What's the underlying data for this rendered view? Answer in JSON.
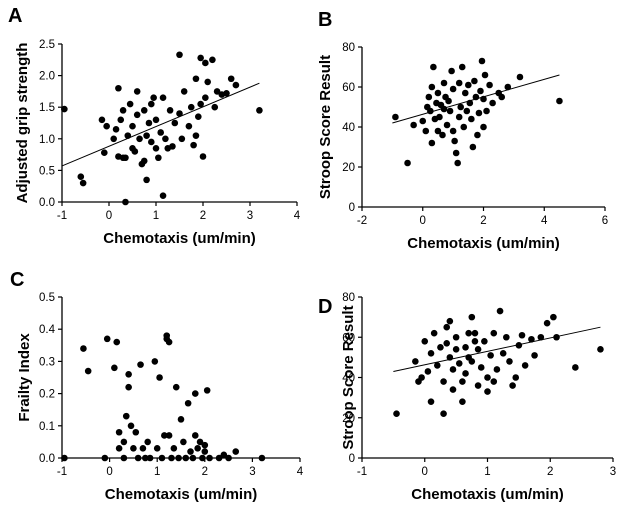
{
  "chart_data": [
    {
      "panel_label": "A",
      "type": "scatter",
      "xlabel": "Chemotaxis (um/min)",
      "ylabel": "Adjusted grip strength",
      "xlim": [
        -1,
        4
      ],
      "ylim": [
        0,
        2.5
      ],
      "xticks": [
        "-1",
        "0",
        "1",
        "2",
        "3",
        "4"
      ],
      "yticks": [
        "0.0",
        "0.5",
        "1.0",
        "1.5",
        "2.0",
        "2.5"
      ],
      "fit_line": [
        [
          -1,
          0.57
        ],
        [
          3.2,
          1.88
        ]
      ],
      "points": [
        [
          -0.95,
          1.47
        ],
        [
          -0.6,
          0.4
        ],
        [
          -0.55,
          0.3
        ],
        [
          -0.15,
          1.3
        ],
        [
          -0.1,
          0.78
        ],
        [
          -0.05,
          1.2
        ],
        [
          0.1,
          1.0
        ],
        [
          0.15,
          1.15
        ],
        [
          0.2,
          0.72
        ],
        [
          0.2,
          1.8
        ],
        [
          0.25,
          1.3
        ],
        [
          0.3,
          1.45
        ],
        [
          0.3,
          0.7
        ],
        [
          0.35,
          0.0
        ],
        [
          0.35,
          0.7
        ],
        [
          0.4,
          1.05
        ],
        [
          0.45,
          1.55
        ],
        [
          0.5,
          1.2
        ],
        [
          0.5,
          0.85
        ],
        [
          0.55,
          0.8
        ],
        [
          0.6,
          1.38
        ],
        [
          0.6,
          1.75
        ],
        [
          0.65,
          1.0
        ],
        [
          0.7,
          0.6
        ],
        [
          0.75,
          0.65
        ],
        [
          0.75,
          1.45
        ],
        [
          0.8,
          1.05
        ],
        [
          0.8,
          0.35
        ],
        [
          0.85,
          1.25
        ],
        [
          0.9,
          1.55
        ],
        [
          0.9,
          0.95
        ],
        [
          0.95,
          1.65
        ],
        [
          1.0,
          0.85
        ],
        [
          1.0,
          1.3
        ],
        [
          1.05,
          0.7
        ],
        [
          1.1,
          1.1
        ],
        [
          1.15,
          1.65
        ],
        [
          1.15,
          0.1
        ],
        [
          1.2,
          1.0
        ],
        [
          1.25,
          0.85
        ],
        [
          1.3,
          1.45
        ],
        [
          1.35,
          0.88
        ],
        [
          1.4,
          1.25
        ],
        [
          1.5,
          2.33
        ],
        [
          1.5,
          1.4
        ],
        [
          1.55,
          1.0
        ],
        [
          1.6,
          1.75
        ],
        [
          1.7,
          1.2
        ],
        [
          1.75,
          1.5
        ],
        [
          1.8,
          0.9
        ],
        [
          1.85,
          1.05
        ],
        [
          1.85,
          1.95
        ],
        [
          1.9,
          1.35
        ],
        [
          1.95,
          2.28
        ],
        [
          1.95,
          1.55
        ],
        [
          2.0,
          0.72
        ],
        [
          2.05,
          1.65
        ],
        [
          2.05,
          2.2
        ],
        [
          2.1,
          1.9
        ],
        [
          2.2,
          2.25
        ],
        [
          2.25,
          1.5
        ],
        [
          2.3,
          1.75
        ],
        [
          2.4,
          1.7
        ],
        [
          2.5,
          1.72
        ],
        [
          2.6,
          1.95
        ],
        [
          2.7,
          1.85
        ],
        [
          3.2,
          1.45
        ]
      ]
    },
    {
      "panel_label": "B",
      "type": "scatter",
      "xlabel": "Chemotaxis (um/min)",
      "ylabel": "Stroop Score Result",
      "xlim": [
        -2,
        6
      ],
      "ylim": [
        0,
        80
      ],
      "xticks": [
        "-2",
        "0",
        "2",
        "4",
        "6"
      ],
      "yticks": [
        "0",
        "20",
        "40",
        "60",
        "80"
      ],
      "fit_line": [
        [
          -1,
          42
        ],
        [
          4.5,
          66
        ]
      ],
      "points": [
        [
          -0.9,
          45
        ],
        [
          -0.5,
          22
        ],
        [
          -0.3,
          41
        ],
        [
          0.0,
          43
        ],
        [
          0.1,
          38
        ],
        [
          0.15,
          50
        ],
        [
          0.2,
          55
        ],
        [
          0.25,
          48
        ],
        [
          0.3,
          60
        ],
        [
          0.3,
          32
        ],
        [
          0.35,
          70
        ],
        [
          0.4,
          44
        ],
        [
          0.45,
          52
        ],
        [
          0.5,
          38
        ],
        [
          0.5,
          57
        ],
        [
          0.55,
          45
        ],
        [
          0.6,
          51
        ],
        [
          0.65,
          36
        ],
        [
          0.7,
          62
        ],
        [
          0.7,
          49
        ],
        [
          0.75,
          55
        ],
        [
          0.8,
          41
        ],
        [
          0.85,
          53
        ],
        [
          0.9,
          48
        ],
        [
          0.95,
          68
        ],
        [
          1.0,
          59
        ],
        [
          1.0,
          38
        ],
        [
          1.05,
          33
        ],
        [
          1.1,
          27
        ],
        [
          1.15,
          22
        ],
        [
          1.2,
          45
        ],
        [
          1.2,
          62
        ],
        [
          1.25,
          50
        ],
        [
          1.3,
          70
        ],
        [
          1.35,
          40
        ],
        [
          1.4,
          57
        ],
        [
          1.45,
          48
        ],
        [
          1.5,
          61
        ],
        [
          1.55,
          52
        ],
        [
          1.6,
          44
        ],
        [
          1.65,
          30
        ],
        [
          1.7,
          63
        ],
        [
          1.75,
          55
        ],
        [
          1.8,
          36
        ],
        [
          1.85,
          47
        ],
        [
          1.9,
          58
        ],
        [
          1.95,
          73
        ],
        [
          2.0,
          40
        ],
        [
          2.0,
          54
        ],
        [
          2.05,
          66
        ],
        [
          2.1,
          48
        ],
        [
          2.2,
          61
        ],
        [
          2.3,
          52
        ],
        [
          2.5,
          57
        ],
        [
          2.6,
          55
        ],
        [
          2.8,
          60
        ],
        [
          3.2,
          65
        ],
        [
          4.5,
          53
        ]
      ]
    },
    {
      "panel_label": "C",
      "type": "scatter",
      "xlabel": "Chemotaxis (um/min)",
      "ylabel": "Frailty  Index",
      "xlim": [
        -1,
        4
      ],
      "ylim": [
        0,
        0.5
      ],
      "xticks": [
        "-1",
        "0",
        "1",
        "2",
        "3",
        "4"
      ],
      "yticks": [
        "0.0",
        "0.1",
        "0.2",
        "0.3",
        "0.4",
        "0.5"
      ],
      "points": [
        [
          -0.95,
          0.0
        ],
        [
          -0.55,
          0.34
        ],
        [
          -0.45,
          0.27
        ],
        [
          -0.1,
          0.0
        ],
        [
          -0.05,
          0.37
        ],
        [
          0.1,
          0.28
        ],
        [
          0.15,
          0.36
        ],
        [
          0.2,
          0.03
        ],
        [
          0.2,
          0.08
        ],
        [
          0.3,
          0.05
        ],
        [
          0.3,
          0.0
        ],
        [
          0.35,
          0.13
        ],
        [
          0.4,
          0.26
        ],
        [
          0.4,
          0.22
        ],
        [
          0.45,
          0.1
        ],
        [
          0.5,
          0.03
        ],
        [
          0.55,
          0.08
        ],
        [
          0.6,
          0.0
        ],
        [
          0.65,
          0.29
        ],
        [
          0.7,
          0.03
        ],
        [
          0.75,
          0.0
        ],
        [
          0.8,
          0.05
        ],
        [
          0.85,
          0.0
        ],
        [
          0.95,
          0.3
        ],
        [
          1.0,
          0.03
        ],
        [
          1.05,
          0.25
        ],
        [
          1.1,
          0.0
        ],
        [
          1.15,
          0.07
        ],
        [
          1.2,
          0.38
        ],
        [
          1.2,
          0.37
        ],
        [
          1.25,
          0.36
        ],
        [
          1.25,
          0.07
        ],
        [
          1.3,
          0.0
        ],
        [
          1.35,
          0.03
        ],
        [
          1.4,
          0.22
        ],
        [
          1.45,
          0.0
        ],
        [
          1.5,
          0.12
        ],
        [
          1.55,
          0.05
        ],
        [
          1.6,
          0.0
        ],
        [
          1.65,
          0.17
        ],
        [
          1.7,
          0.02
        ],
        [
          1.75,
          0.0
        ],
        [
          1.8,
          0.07
        ],
        [
          1.8,
          0.2
        ],
        [
          1.85,
          0.03
        ],
        [
          1.9,
          0.05
        ],
        [
          1.95,
          0.0
        ],
        [
          2.0,
          0.02
        ],
        [
          2.0,
          0.04
        ],
        [
          2.05,
          0.21
        ],
        [
          2.1,
          0.0
        ],
        [
          2.3,
          0.0
        ],
        [
          2.4,
          0.01
        ],
        [
          2.5,
          0.0
        ],
        [
          2.65,
          0.02
        ],
        [
          3.2,
          0.0
        ]
      ]
    },
    {
      "panel_label": "D",
      "type": "scatter",
      "xlabel": "Chemotaxis (um/min)",
      "ylabel": "Stroop Score Result",
      "xlim": [
        -1,
        3
      ],
      "ylim": [
        0,
        80
      ],
      "xticks": [
        "-1",
        "0",
        "1",
        "2",
        "3"
      ],
      "yticks": [
        "0",
        "20",
        "40",
        "60",
        "80"
      ],
      "fit_line": [
        [
          -0.5,
          43
        ],
        [
          2.8,
          65
        ]
      ],
      "points": [
        [
          -0.45,
          22
        ],
        [
          -0.15,
          48
        ],
        [
          -0.1,
          38
        ],
        [
          -0.05,
          40
        ],
        [
          0.0,
          58
        ],
        [
          0.05,
          43
        ],
        [
          0.1,
          28
        ],
        [
          0.1,
          52
        ],
        [
          0.15,
          62
        ],
        [
          0.2,
          46
        ],
        [
          0.25,
          55
        ],
        [
          0.3,
          22
        ],
        [
          0.3,
          38
        ],
        [
          0.35,
          65
        ],
        [
          0.35,
          57
        ],
        [
          0.4,
          68
        ],
        [
          0.4,
          50
        ],
        [
          0.45,
          44
        ],
        [
          0.45,
          34
        ],
        [
          0.5,
          54
        ],
        [
          0.5,
          60
        ],
        [
          0.55,
          47
        ],
        [
          0.6,
          38
        ],
        [
          0.6,
          28
        ],
        [
          0.65,
          55
        ],
        [
          0.65,
          42
        ],
        [
          0.7,
          62
        ],
        [
          0.7,
          50
        ],
        [
          0.75,
          48
        ],
        [
          0.75,
          70
        ],
        [
          0.8,
          62
        ],
        [
          0.8,
          58
        ],
        [
          0.85,
          36
        ],
        [
          0.85,
          54
        ],
        [
          0.9,
          45
        ],
        [
          0.95,
          58
        ],
        [
          1.0,
          33
        ],
        [
          1.0,
          40
        ],
        [
          1.05,
          51
        ],
        [
          1.1,
          62
        ],
        [
          1.1,
          38
        ],
        [
          1.15,
          44
        ],
        [
          1.2,
          73
        ],
        [
          1.25,
          52
        ],
        [
          1.3,
          60
        ],
        [
          1.35,
          48
        ],
        [
          1.4,
          36
        ],
        [
          1.45,
          40
        ],
        [
          1.5,
          56
        ],
        [
          1.55,
          61
        ],
        [
          1.6,
          46
        ],
        [
          1.7,
          59
        ],
        [
          1.75,
          51
        ],
        [
          1.85,
          60
        ],
        [
          1.95,
          67
        ],
        [
          2.05,
          70
        ],
        [
          2.1,
          60
        ],
        [
          2.4,
          45
        ],
        [
          2.8,
          54
        ]
      ]
    }
  ]
}
